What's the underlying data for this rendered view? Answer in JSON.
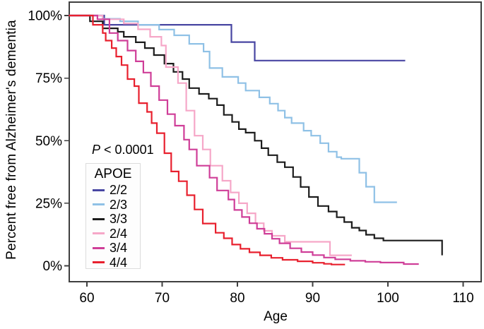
{
  "figure": {
    "ylabel": "Percent free from Alzheimer's dementia",
    "xlabel": "Age",
    "p_value": {
      "symbol": "P",
      "comparison": " < 0.0001"
    },
    "legend_title": "APOE"
  },
  "chart_data": {
    "type": "line",
    "subtype": "kaplan-meier-step-survival",
    "title": "",
    "xlabel": "Age",
    "ylabel": "Percent free from Alzheimer's dementia",
    "xlim": [
      57.6,
      112.5
    ],
    "ylim_percent": [
      -6.5,
      105
    ],
    "x_ticks": [
      60,
      70,
      80,
      90,
      100,
      110
    ],
    "x_tick_labels": [
      "60",
      "70",
      "80",
      "90",
      "100",
      "110"
    ],
    "y_ticks": [
      100,
      75,
      50,
      25,
      0
    ],
    "y_tick_labels": [
      "100%",
      "75%",
      "50%",
      "25%",
      "0%"
    ],
    "grid": false,
    "legend_position": "middle-left",
    "annotation_p_value": "P < 0.0001",
    "frame_color": "#3f3f3f",
    "series": [
      {
        "name": "2/2",
        "color": "#4846a2",
        "end_age": 102.3,
        "points": [
          [
            57.6,
            100
          ],
          [
            62.3,
            96.3
          ],
          [
            79.2,
            89.4
          ],
          [
            82.3,
            82.0
          ]
        ]
      },
      {
        "name": "2/3",
        "color": "#8fc1e6",
        "end_age": 101.2,
        "points": [
          [
            57.6,
            100
          ],
          [
            62.1,
            98.7
          ],
          [
            64.4,
            97.7
          ],
          [
            66.8,
            96.3
          ],
          [
            69.6,
            94.4
          ],
          [
            71.6,
            92.1
          ],
          [
            73.6,
            88.7
          ],
          [
            75.5,
            85.6
          ],
          [
            76.3,
            79.0
          ],
          [
            78.0,
            75.5
          ],
          [
            80.1,
            73.0
          ],
          [
            81.1,
            70.0
          ],
          [
            82.9,
            67.3
          ],
          [
            84.3,
            64.8
          ],
          [
            85.4,
            62.0
          ],
          [
            86.3,
            59.2
          ],
          [
            87.2,
            57.0
          ],
          [
            88.8,
            54.0
          ],
          [
            89.8,
            52.0
          ],
          [
            91.0,
            49.0
          ],
          [
            92.1,
            45.6
          ],
          [
            93.2,
            43.4
          ],
          [
            93.8,
            42.8
          ],
          [
            96.2,
            37.2
          ],
          [
            97.1,
            31.6
          ],
          [
            98.2,
            25.4
          ]
        ]
      },
      {
        "name": "3/3",
        "color": "#1c1c1c",
        "end_age": 107.2,
        "points": [
          [
            57.6,
            100
          ],
          [
            60.4,
            97.7
          ],
          [
            62.1,
            94.9
          ],
          [
            64.1,
            93.5
          ],
          [
            64.9,
            91.5
          ],
          [
            66.5,
            89.3
          ],
          [
            67.7,
            87.0
          ],
          [
            68.9,
            84.2
          ],
          [
            70.3,
            80.8
          ],
          [
            71.5,
            77.5
          ],
          [
            72.7,
            74.6
          ],
          [
            73.6,
            71.0
          ],
          [
            74.9,
            68.7
          ],
          [
            76.2,
            66.8
          ],
          [
            77.3,
            64.2
          ],
          [
            78.2,
            60.3
          ],
          [
            79.3,
            57.5
          ],
          [
            80.2,
            54.6
          ],
          [
            81.1,
            53.2
          ],
          [
            82.3,
            50.0
          ],
          [
            83.2,
            47.0
          ],
          [
            84.1,
            44.2
          ],
          [
            85.3,
            41.4
          ],
          [
            86.3,
            39.4
          ],
          [
            87.4,
            35.5
          ],
          [
            88.4,
            31.5
          ],
          [
            89.5,
            27.5
          ],
          [
            90.7,
            23.9
          ],
          [
            92.1,
            21.7
          ],
          [
            93.2,
            19.4
          ],
          [
            94.2,
            17.5
          ],
          [
            95.2,
            15.2
          ],
          [
            96.2,
            14.1
          ],
          [
            97.1,
            12.4
          ],
          [
            98.2,
            11.0
          ],
          [
            99.4,
            10.1
          ],
          [
            107.2,
            4.2
          ]
        ]
      },
      {
        "name": "2/4",
        "color": "#f6a7c8",
        "end_age": 95.2,
        "points": [
          [
            57.6,
            100
          ],
          [
            62.1,
            98.5
          ],
          [
            64.9,
            96.8
          ],
          [
            66.8,
            94.5
          ],
          [
            68.4,
            91.5
          ],
          [
            69.9,
            88.0
          ],
          [
            70.5,
            79.4
          ],
          [
            72.1,
            73.0
          ],
          [
            73.2,
            62.0
          ],
          [
            74.3,
            52.0
          ],
          [
            75.4,
            46.5
          ],
          [
            76.4,
            40.0
          ],
          [
            78.0,
            34.0
          ],
          [
            79.1,
            29.3
          ],
          [
            80.2,
            25.0
          ],
          [
            81.3,
            21.0
          ],
          [
            82.4,
            17.0
          ],
          [
            83.5,
            14.0
          ],
          [
            84.6,
            12.0
          ],
          [
            86.3,
            9.6
          ],
          [
            92.3,
            4.2
          ]
        ]
      },
      {
        "name": "3/4",
        "color": "#cf3e98",
        "end_age": 104.1,
        "points": [
          [
            57.6,
            100
          ],
          [
            61.4,
            98.5
          ],
          [
            63.0,
            93.0
          ],
          [
            64.1,
            90.0
          ],
          [
            65.4,
            86.0
          ],
          [
            66.5,
            81.7
          ],
          [
            67.5,
            77.2
          ],
          [
            68.5,
            71.8
          ],
          [
            69.6,
            66.2
          ],
          [
            70.7,
            60.6
          ],
          [
            71.7,
            56.0
          ],
          [
            72.9,
            50.4
          ],
          [
            73.6,
            46.5
          ],
          [
            74.6,
            40.0
          ],
          [
            76.3,
            35.2
          ],
          [
            77.3,
            30.1
          ],
          [
            78.8,
            26.5
          ],
          [
            79.6,
            22.3
          ],
          [
            80.6,
            19.5
          ],
          [
            81.6,
            17.0
          ],
          [
            82.6,
            14.8
          ],
          [
            83.6,
            12.8
          ],
          [
            84.6,
            10.8
          ],
          [
            85.6,
            9.0
          ],
          [
            87.0,
            7.0
          ],
          [
            88.5,
            5.5
          ],
          [
            90.0,
            4.3
          ],
          [
            91.5,
            3.3
          ],
          [
            93.0,
            2.6
          ],
          [
            95.0,
            2.0
          ],
          [
            97.0,
            1.6
          ],
          [
            99.0,
            1.3
          ],
          [
            102.1,
            0.7
          ]
        ]
      },
      {
        "name": "4/4",
        "color": "#e8202e",
        "end_age": 94.3,
        "points": [
          [
            57.6,
            100
          ],
          [
            60.8,
            96.3
          ],
          [
            62.1,
            93.0
          ],
          [
            62.5,
            90.0
          ],
          [
            63.3,
            87.0
          ],
          [
            63.9,
            83.6
          ],
          [
            64.6,
            80.2
          ],
          [
            65.4,
            74.6
          ],
          [
            66.3,
            71.8
          ],
          [
            66.9,
            65.0
          ],
          [
            68.0,
            61.5
          ],
          [
            68.6,
            57.0
          ],
          [
            69.3,
            53.0
          ],
          [
            70.3,
            45.0
          ],
          [
            71.2,
            37.7
          ],
          [
            72.2,
            33.8
          ],
          [
            73.3,
            28.2
          ],
          [
            74.3,
            22.5
          ],
          [
            75.4,
            16.9
          ],
          [
            77.1,
            13.2
          ],
          [
            78.2,
            11.0
          ],
          [
            79.3,
            8.5
          ],
          [
            80.4,
            6.8
          ],
          [
            81.6,
            5.4
          ],
          [
            83.0,
            4.2
          ],
          [
            84.5,
            3.2
          ],
          [
            86.0,
            2.4
          ],
          [
            88.0,
            1.8
          ],
          [
            90.0,
            1.2
          ],
          [
            91.5,
            0.8
          ],
          [
            92.5,
            0.5
          ]
        ]
      }
    ]
  }
}
